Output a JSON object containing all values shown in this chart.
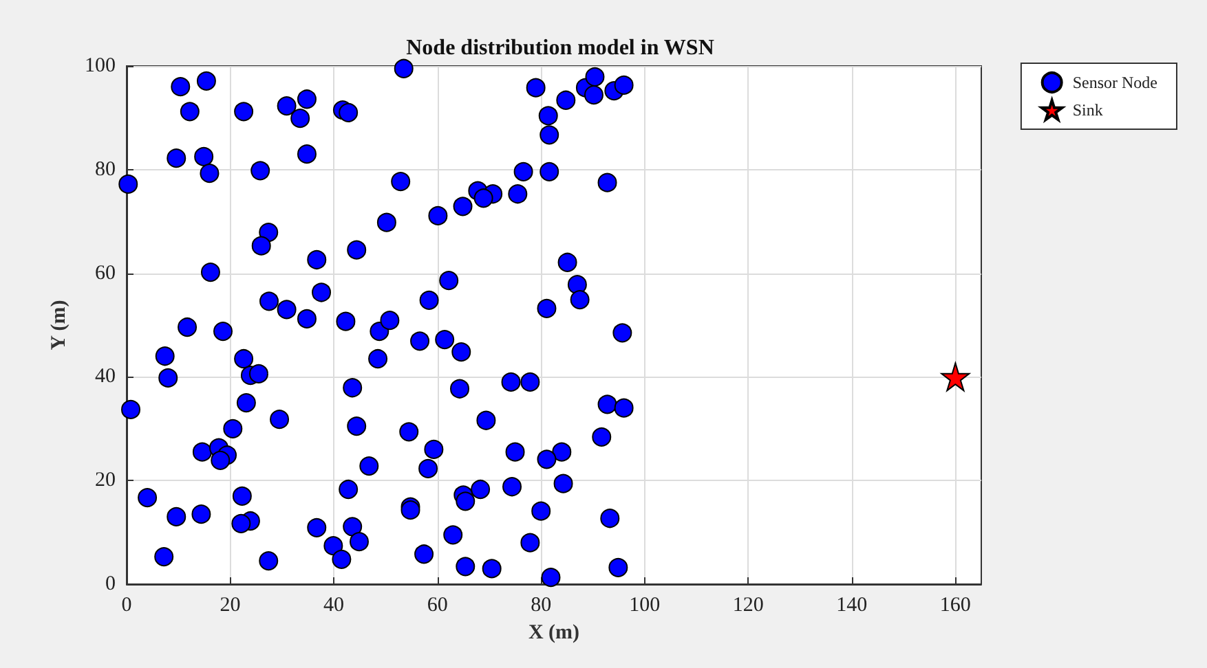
{
  "chart_data": {
    "type": "scatter",
    "title": "Node distribution model in WSN",
    "xlabel": "X (m)",
    "ylabel": "Y (m)",
    "xlim": [
      0,
      165
    ],
    "xticks": [
      0,
      20,
      40,
      60,
      80,
      100,
      120,
      140,
      160
    ],
    "ylim": [
      0,
      100
    ],
    "yticks": [
      0,
      20,
      40,
      60,
      80,
      100
    ],
    "grid": true,
    "legend": "top right",
    "series": [
      {
        "name": "Sensor Node",
        "color": "#0000ff",
        "marker": "circle",
        "x": [
          11.7,
          18.6,
          7.4,
          8.0,
          0.8,
          22.6,
          23.9,
          25.5,
          23.1,
          29.5,
          20.5,
          14.6,
          17.8,
          19.4,
          18.1,
          4.0,
          9.6,
          14.4,
          22.3,
          23.9,
          22.1,
          7.2,
          27.4,
          36.7,
          39.9,
          41.5,
          43.6,
          44.9,
          42.8,
          46.8,
          44.4,
          43.6,
          48.5,
          48.8,
          42.3,
          34.8,
          30.9,
          27.5,
          37.6,
          10.4,
          15.4,
          12.2,
          22.6,
          30.9,
          34.8,
          33.5,
          41.7,
          42.8,
          9.6,
          14.9,
          16.0,
          25.8,
          34.8,
          0.3,
          50.2,
          27.4,
          26.0,
          36.7,
          44.4,
          16.2,
          53.5,
          79.0,
          84.8,
          88.6,
          90.4,
          90.2,
          94.1,
          96.0,
          81.4,
          81.6,
          52.9,
          76.6,
          81.6,
          92.8,
          75.5,
          67.8,
          70.7,
          68.9,
          64.9,
          60.1,
          85.1,
          87.0,
          87.5,
          81.1,
          62.2,
          58.4,
          95.7,
          50.8,
          56.6,
          61.4,
          64.6,
          64.3,
          74.2,
          77.9,
          92.8,
          96.0,
          69.4,
          54.5,
          91.7,
          59.3,
          58.2,
          75.0,
          84.0,
          81.1,
          68.3,
          74.4,
          84.3,
          65.0,
          65.4,
          54.8,
          54.8,
          80.0,
          93.3,
          63.0,
          77.9,
          57.4,
          65.4,
          70.5,
          81.9,
          94.9
        ],
        "values": [
          49.6,
          48.8,
          44.0,
          39.8,
          33.7,
          43.5,
          40.3,
          40.6,
          35.0,
          31.8,
          30.0,
          25.5,
          26.3,
          24.9,
          23.9,
          16.7,
          13.0,
          13.5,
          17.0,
          12.2,
          11.7,
          5.3,
          4.5,
          10.9,
          7.4,
          4.8,
          11.1,
          8.2,
          18.3,
          22.8,
          30.5,
          37.9,
          43.5,
          48.8,
          50.7,
          51.2,
          53.0,
          54.6,
          56.3,
          96.0,
          97.1,
          91.2,
          91.2,
          92.3,
          93.6,
          89.9,
          91.5,
          91.0,
          82.2,
          82.5,
          79.3,
          79.8,
          83.0,
          77.2,
          69.8,
          67.9,
          65.3,
          62.6,
          64.5,
          60.2,
          99.5,
          95.8,
          93.4,
          95.8,
          97.9,
          94.4,
          95.2,
          96.3,
          90.4,
          86.7,
          77.7,
          79.6,
          79.6,
          77.5,
          75.3,
          75.9,
          75.3,
          74.5,
          72.9,
          71.1,
          62.1,
          57.8,
          54.9,
          53.2,
          58.6,
          54.8,
          48.5,
          50.9,
          46.9,
          47.2,
          44.8,
          37.7,
          39.0,
          39.0,
          34.7,
          34.0,
          31.6,
          29.4,
          28.4,
          26.0,
          22.3,
          25.5,
          25.5,
          24.1,
          18.3,
          18.8,
          19.4,
          17.2,
          16.0,
          14.9,
          14.3,
          14.1,
          12.7,
          9.5,
          8.0,
          5.8,
          3.4,
          3.0,
          1.3,
          3.2
        ]
      },
      {
        "name": "Sink",
        "color": "#ff0000",
        "marker": "star",
        "x": [
          160
        ],
        "values": [
          40
        ]
      }
    ]
  }
}
